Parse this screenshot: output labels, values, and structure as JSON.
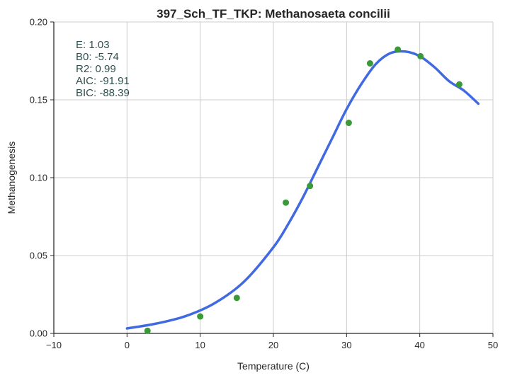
{
  "chart_data": {
    "type": "scatter",
    "title": "397_Sch_TF_TKP: Methanosaeta concilii",
    "xlabel": "Temperature (C)",
    "ylabel": "Methanogenesis",
    "xlim": [
      -10,
      50
    ],
    "ylim": [
      0,
      0.2
    ],
    "xticks": [
      -10,
      0,
      10,
      20,
      30,
      40,
      50
    ],
    "xtick_labels": [
      "−10",
      "0",
      "10",
      "20",
      "30",
      "40",
      "50"
    ],
    "yticks": [
      0.0,
      0.05,
      0.1,
      0.15,
      0.2
    ],
    "ytick_labels": [
      "0.00",
      "0.05",
      "0.10",
      "0.15",
      "0.20"
    ],
    "grid": true,
    "series": [
      {
        "type": "scatter",
        "x": [
          2.8,
          10.0,
          15.0,
          21.7,
          25.0,
          30.3,
          33.2,
          37.0,
          40.1,
          45.4
        ],
        "y": [
          0.0017,
          0.0109,
          0.0228,
          0.084,
          0.0947,
          0.1352,
          0.1734,
          0.1823,
          0.178,
          0.1599
        ],
        "color": "#3a9a3a"
      },
      {
        "type": "line",
        "x": [
          0,
          4,
          8,
          12,
          16,
          20,
          22,
          24,
          26,
          28,
          30,
          32,
          34,
          36,
          38,
          40,
          42,
          44,
          46,
          48
        ],
        "y": [
          0.0032,
          0.0063,
          0.0111,
          0.0195,
          0.0333,
          0.0553,
          0.07,
          0.087,
          0.106,
          0.125,
          0.144,
          0.16,
          0.173,
          0.18,
          0.181,
          0.178,
          0.171,
          0.162,
          0.156,
          0.1475
        ],
        "color": "#4169e1"
      }
    ],
    "annotation_lines": [
      "E:  1.03",
      "B0:  -5.74",
      "R2:  0.99",
      "AIC: -91.91",
      "BIC: -88.39"
    ],
    "annotation_color": "#2f4f4f"
  }
}
